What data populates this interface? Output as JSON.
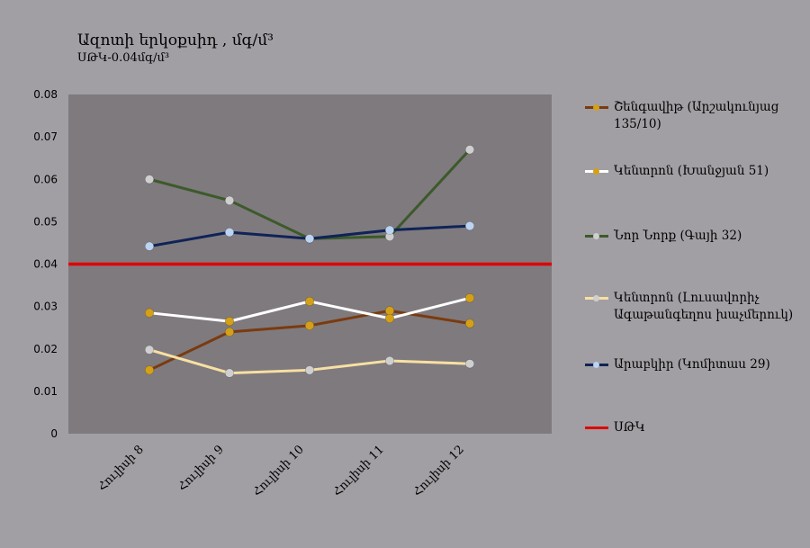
{
  "chart_data": {
    "type": "line",
    "title": "Ազոտի երկօքսիդ , մգ/մ³",
    "subtitle": "ՍԹԿ-0.04մգ/մ³",
    "categories": [
      "Հուլիսի 8",
      "Հուլիսի 9",
      "Հուլիսի 10",
      "Հուլիսի 11",
      "Հուլիսի 12"
    ],
    "ylim": [
      0,
      0.08
    ],
    "yticks": [
      "0",
      "0.01",
      "0.02",
      "0.03",
      "0.04",
      "0.05",
      "0.06",
      "0.07",
      "0.08"
    ],
    "ytick_values": [
      0,
      0.01,
      0.02,
      0.03,
      0.04,
      0.05,
      0.06,
      0.07,
      0.08
    ],
    "grid": false,
    "legend_position": "right",
    "plot_background": "#7f7a7e",
    "series": [
      {
        "name": "Շենգավիթ (Արշակունյաց 135/10)",
        "values": [
          0.015,
          0.024,
          0.0255,
          0.029,
          0.026
        ],
        "color": "#7a3b0f",
        "marker": "#d4a017"
      },
      {
        "name": "Կենտրոն (Խանջյան 51)",
        "values": [
          0.0285,
          0.0265,
          0.0312,
          0.0272,
          0.032
        ],
        "color": "#ffffff",
        "marker": "#d4a017"
      },
      {
        "name": "Նոր Նորք (Գայի 32)",
        "values": [
          0.06,
          0.055,
          0.046,
          0.0465,
          0.067
        ],
        "color": "#3c5a2a",
        "marker": "#cfcfcf"
      },
      {
        "name": "Կենտրոն (Լուսավորիչ Ագաթանգեղոս խաչմերուկ)",
        "values": [
          0.0198,
          0.0143,
          0.015,
          0.0172,
          0.0165
        ],
        "color": "#f7e0a3",
        "marker": "#cfcfcf"
      },
      {
        "name": "Արաբկիր (Կոմիտաս 29)",
        "values": [
          0.0442,
          0.0475,
          0.046,
          0.048,
          0.049
        ],
        "color": "#0f2357",
        "marker": "#bcd3f2"
      }
    ],
    "threshold": {
      "name": "ՍԹԿ",
      "value": 0.04,
      "color": "#e00000"
    }
  }
}
